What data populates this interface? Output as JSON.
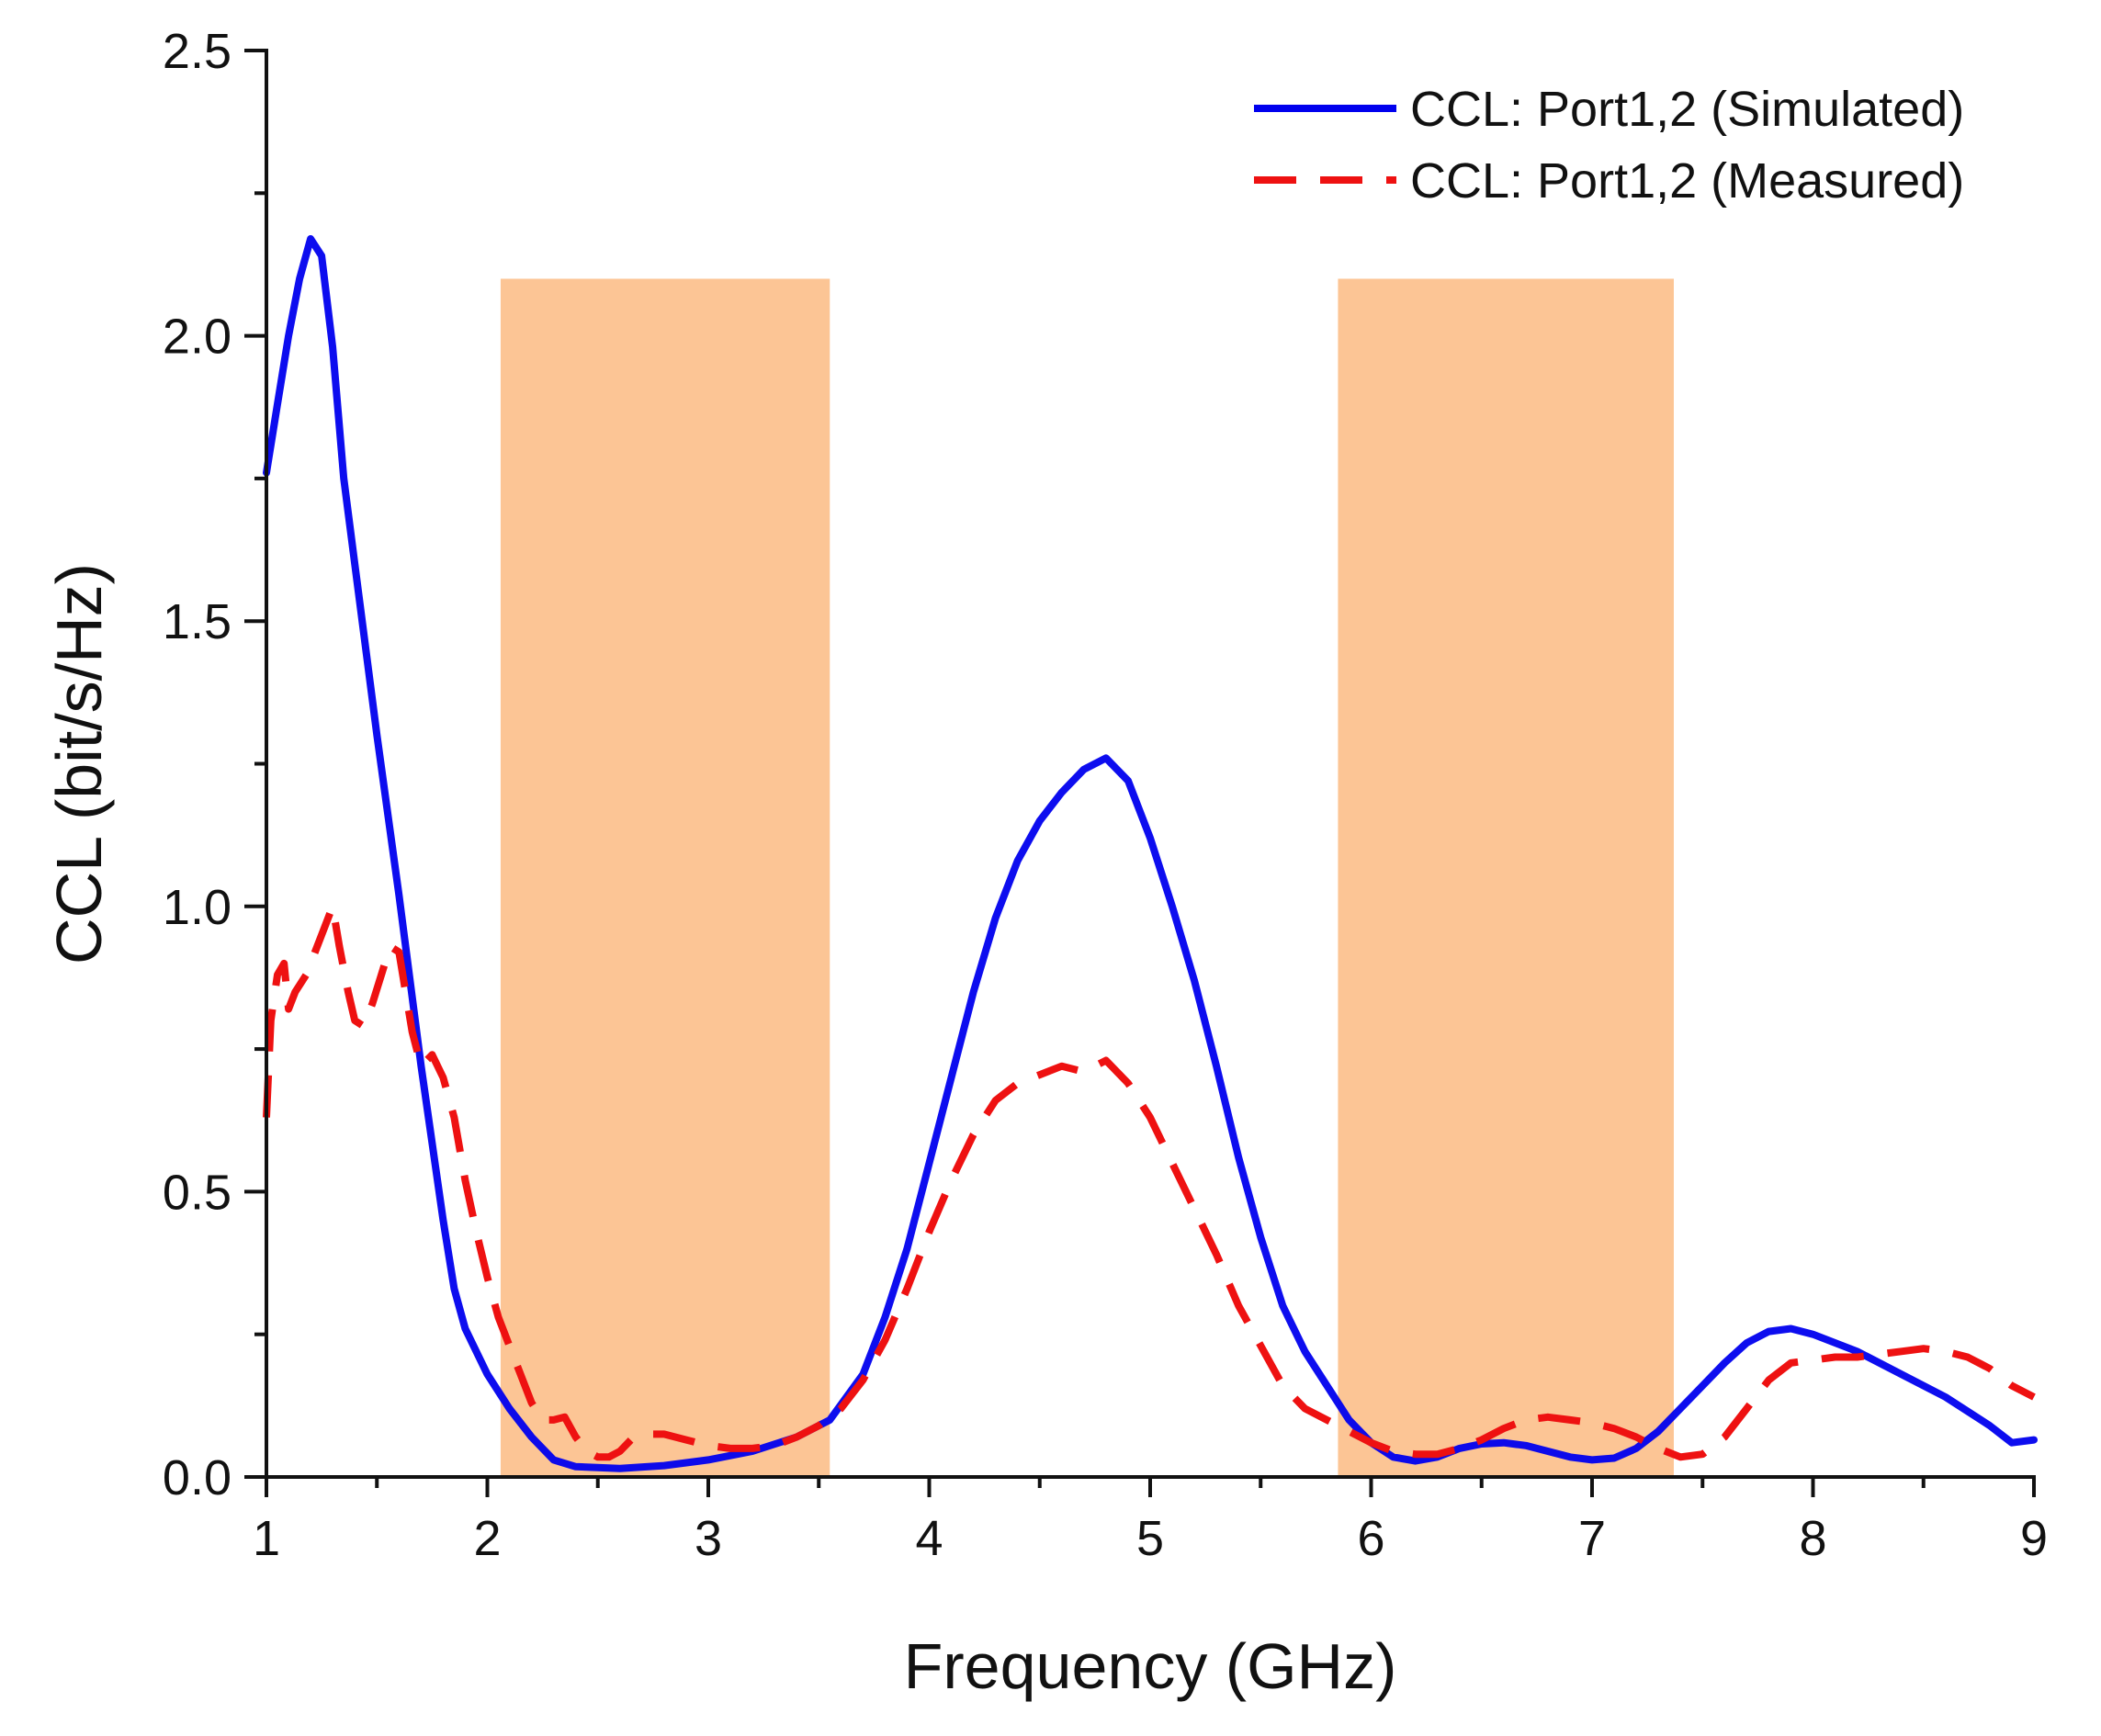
{
  "chart_data": {
    "type": "line",
    "title": "",
    "xlabel": "Frequency (GHz)",
    "ylabel": "CCL (bit/s/Hz)",
    "xlim": [
      1,
      9
    ],
    "ylim": [
      0,
      2.5
    ],
    "xticks": [
      1,
      2,
      3,
      4,
      5,
      6,
      7,
      8,
      9
    ],
    "xtick_labels": [
      "1",
      "2",
      "3",
      "4",
      "5",
      "6",
      "7",
      "8",
      "9"
    ],
    "yticks": [
      0,
      0.5,
      1,
      1.5,
      2,
      2.5
    ],
    "ytick_labels": [
      "0.0",
      "0.5",
      "1.0",
      "1.5",
      "2.0",
      "2.5"
    ],
    "grid": false,
    "legend_position": "top-right",
    "bands": [
      {
        "x0": 2.06,
        "x1": 3.55,
        "y1": 2.1,
        "color": "#fcc595"
      },
      {
        "x0": 5.85,
        "x1": 7.37,
        "y1": 2.1,
        "color": "#fcc595"
      }
    ],
    "series": [
      {
        "name": "CCL: Port1,2 (Simulated)",
        "color": "#0000ee",
        "style": "solid",
        "points": [
          [
            1.0,
            1.76
          ],
          [
            1.05,
            1.88
          ],
          [
            1.1,
            2.0
          ],
          [
            1.15,
            2.1
          ],
          [
            1.2,
            2.17
          ],
          [
            1.25,
            2.14
          ],
          [
            1.3,
            1.98
          ],
          [
            1.35,
            1.75
          ],
          [
            1.4,
            1.6
          ],
          [
            1.5,
            1.3
          ],
          [
            1.6,
            1.02
          ],
          [
            1.7,
            0.72
          ],
          [
            1.8,
            0.45
          ],
          [
            1.85,
            0.33
          ],
          [
            1.9,
            0.26
          ],
          [
            2.0,
            0.18
          ],
          [
            2.1,
            0.12
          ],
          [
            2.2,
            0.07
          ],
          [
            2.3,
            0.03
          ],
          [
            2.4,
            0.018
          ],
          [
            2.6,
            0.015
          ],
          [
            2.8,
            0.02
          ],
          [
            3.0,
            0.03
          ],
          [
            3.2,
            0.045
          ],
          [
            3.4,
            0.07
          ],
          [
            3.55,
            0.1
          ],
          [
            3.7,
            0.18
          ],
          [
            3.8,
            0.28
          ],
          [
            3.9,
            0.4
          ],
          [
            4.0,
            0.55
          ],
          [
            4.1,
            0.7
          ],
          [
            4.2,
            0.85
          ],
          [
            4.3,
            0.98
          ],
          [
            4.4,
            1.08
          ],
          [
            4.5,
            1.15
          ],
          [
            4.6,
            1.2
          ],
          [
            4.7,
            1.24
          ],
          [
            4.8,
            1.26
          ],
          [
            4.9,
            1.22
          ],
          [
            5.0,
            1.12
          ],
          [
            5.1,
            1.0
          ],
          [
            5.2,
            0.87
          ],
          [
            5.3,
            0.72
          ],
          [
            5.4,
            0.56
          ],
          [
            5.5,
            0.42
          ],
          [
            5.6,
            0.3
          ],
          [
            5.7,
            0.22
          ],
          [
            5.8,
            0.16
          ],
          [
            5.9,
            0.1
          ],
          [
            6.0,
            0.06
          ],
          [
            6.1,
            0.035
          ],
          [
            6.2,
            0.028
          ],
          [
            6.3,
            0.035
          ],
          [
            6.4,
            0.05
          ],
          [
            6.5,
            0.058
          ],
          [
            6.6,
            0.06
          ],
          [
            6.7,
            0.055
          ],
          [
            6.8,
            0.045
          ],
          [
            6.9,
            0.035
          ],
          [
            7.0,
            0.03
          ],
          [
            7.1,
            0.033
          ],
          [
            7.2,
            0.05
          ],
          [
            7.3,
            0.08
          ],
          [
            7.4,
            0.12
          ],
          [
            7.5,
            0.16
          ],
          [
            7.6,
            0.2
          ],
          [
            7.7,
            0.235
          ],
          [
            7.8,
            0.255
          ],
          [
            7.9,
            0.26
          ],
          [
            8.0,
            0.25
          ],
          [
            8.2,
            0.22
          ],
          [
            8.4,
            0.18
          ],
          [
            8.6,
            0.14
          ],
          [
            8.8,
            0.09
          ],
          [
            8.9,
            0.06
          ],
          [
            9.0,
            0.065
          ]
        ]
      },
      {
        "name": "CCL: Port1,2 (Measured)",
        "color": "#ee1111",
        "style": "dashed",
        "points": [
          [
            1.0,
            0.63
          ],
          [
            1.02,
            0.8
          ],
          [
            1.05,
            0.88
          ],
          [
            1.08,
            0.9
          ],
          [
            1.1,
            0.82
          ],
          [
            1.13,
            0.85
          ],
          [
            1.18,
            0.88
          ],
          [
            1.22,
            0.92
          ],
          [
            1.27,
            0.97
          ],
          [
            1.3,
            1.0
          ],
          [
            1.33,
            0.93
          ],
          [
            1.37,
            0.85
          ],
          [
            1.4,
            0.8
          ],
          [
            1.44,
            0.79
          ],
          [
            1.48,
            0.83
          ],
          [
            1.52,
            0.88
          ],
          [
            1.56,
            0.93
          ],
          [
            1.6,
            0.92
          ],
          [
            1.63,
            0.85
          ],
          [
            1.66,
            0.78
          ],
          [
            1.7,
            0.72
          ],
          [
            1.75,
            0.74
          ],
          [
            1.8,
            0.7
          ],
          [
            1.85,
            0.63
          ],
          [
            1.9,
            0.52
          ],
          [
            1.95,
            0.43
          ],
          [
            2.0,
            0.35
          ],
          [
            2.05,
            0.28
          ],
          [
            2.1,
            0.23
          ],
          [
            2.15,
            0.18
          ],
          [
            2.2,
            0.13
          ],
          [
            2.25,
            0.1
          ],
          [
            2.3,
            0.1
          ],
          [
            2.35,
            0.105
          ],
          [
            2.4,
            0.07
          ],
          [
            2.45,
            0.045
          ],
          [
            2.5,
            0.035
          ],
          [
            2.55,
            0.035
          ],
          [
            2.6,
            0.045
          ],
          [
            2.65,
            0.065
          ],
          [
            2.7,
            0.075
          ],
          [
            2.8,
            0.075
          ],
          [
            2.9,
            0.065
          ],
          [
            3.0,
            0.055
          ],
          [
            3.1,
            0.05
          ],
          [
            3.2,
            0.05
          ],
          [
            3.3,
            0.055
          ],
          [
            3.4,
            0.07
          ],
          [
            3.5,
            0.09
          ],
          [
            3.6,
            0.12
          ],
          [
            3.7,
            0.17
          ],
          [
            3.8,
            0.24
          ],
          [
            3.9,
            0.33
          ],
          [
            4.0,
            0.43
          ],
          [
            4.1,
            0.52
          ],
          [
            4.2,
            0.6
          ],
          [
            4.3,
            0.66
          ],
          [
            4.4,
            0.69
          ],
          [
            4.5,
            0.705
          ],
          [
            4.6,
            0.72
          ],
          [
            4.7,
            0.71
          ],
          [
            4.8,
            0.73
          ],
          [
            4.9,
            0.69
          ],
          [
            5.0,
            0.63
          ],
          [
            5.1,
            0.55
          ],
          [
            5.2,
            0.47
          ],
          [
            5.3,
            0.39
          ],
          [
            5.4,
            0.3
          ],
          [
            5.5,
            0.23
          ],
          [
            5.6,
            0.16
          ],
          [
            5.7,
            0.12
          ],
          [
            5.8,
            0.1
          ],
          [
            5.9,
            0.08
          ],
          [
            6.0,
            0.06
          ],
          [
            6.1,
            0.045
          ],
          [
            6.2,
            0.04
          ],
          [
            6.3,
            0.04
          ],
          [
            6.4,
            0.05
          ],
          [
            6.5,
            0.065
          ],
          [
            6.6,
            0.085
          ],
          [
            6.7,
            0.1
          ],
          [
            6.8,
            0.105
          ],
          [
            6.9,
            0.1
          ],
          [
            7.0,
            0.095
          ],
          [
            7.1,
            0.085
          ],
          [
            7.2,
            0.07
          ],
          [
            7.3,
            0.05
          ],
          [
            7.4,
            0.035
          ],
          [
            7.5,
            0.04
          ],
          [
            7.6,
            0.07
          ],
          [
            7.7,
            0.12
          ],
          [
            7.8,
            0.17
          ],
          [
            7.9,
            0.2
          ],
          [
            8.0,
            0.205
          ],
          [
            8.1,
            0.21
          ],
          [
            8.2,
            0.21
          ],
          [
            8.3,
            0.215
          ],
          [
            8.4,
            0.22
          ],
          [
            8.5,
            0.225
          ],
          [
            8.6,
            0.22
          ],
          [
            8.7,
            0.21
          ],
          [
            8.8,
            0.19
          ],
          [
            8.9,
            0.16
          ],
          [
            9.0,
            0.14
          ]
        ]
      }
    ]
  }
}
